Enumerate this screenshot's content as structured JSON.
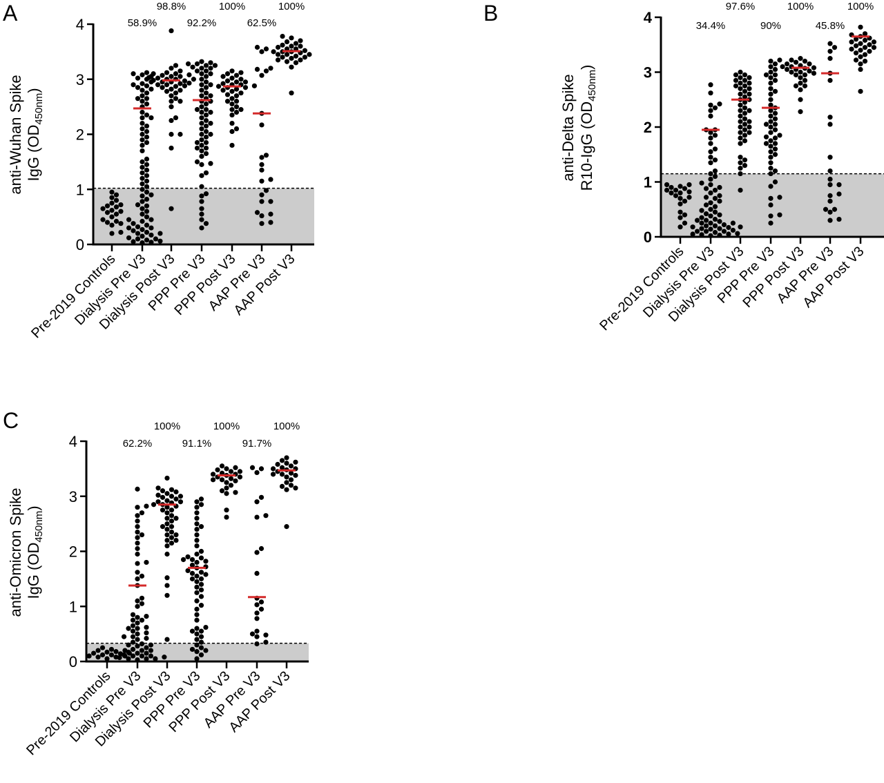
{
  "colors": {
    "dot": "#000000",
    "median": "#d42a2a",
    "below_threshold_fill": "#cccccc"
  },
  "chart_data": [
    {
      "type": "scatter",
      "subtype": "dot-plot",
      "panel_label": "A",
      "ylabel": {
        "line1": "anti-Wuhan Spike",
        "line2": "IgG (OD",
        "subscript": "450nm",
        "suffix": ")"
      },
      "ylim": [
        0,
        4
      ],
      "yticks": [
        "0",
        "1",
        "2",
        "3",
        "4"
      ],
      "grid": false,
      "threshold": 1.02,
      "categories": [
        "Pre-2019 Controls",
        "Dialysis Pre V3",
        "Dialysis Post V3",
        "PPP Pre V3",
        "PPP Post V3",
        "AAP Pre V3",
        "AAP Post V3"
      ],
      "percent_labels": [
        "",
        "58.9%",
        "98.8%",
        "92.2%",
        "100%",
        "62.5%",
        "100%"
      ],
      "medians": [
        null,
        2.47,
        2.98,
        2.62,
        2.87,
        2.38,
        3.51
      ],
      "values": [
        [
          0.2,
          0.22,
          0.35,
          0.38,
          0.4,
          0.42,
          0.45,
          0.5,
          0.55,
          0.58,
          0.6,
          0.62,
          0.65,
          0.68,
          0.7,
          0.72,
          0.75,
          0.8,
          0.85,
          0.9,
          0.95
        ],
        [
          0.03,
          0.04,
          0.05,
          0.06,
          0.08,
          0.1,
          0.12,
          0.15,
          0.17,
          0.2,
          0.22,
          0.25,
          0.27,
          0.3,
          0.32,
          0.35,
          0.38,
          0.42,
          0.45,
          0.5,
          0.55,
          0.6,
          0.65,
          0.7,
          0.72,
          0.78,
          0.82,
          0.88,
          0.9,
          0.95,
          1.0,
          1.05,
          1.1,
          1.15,
          1.2,
          1.25,
          1.3,
          1.35,
          1.4,
          1.45,
          1.5,
          1.55,
          1.7,
          1.8,
          1.85,
          1.95,
          2.0,
          2.05,
          2.1,
          2.15,
          2.2,
          2.3,
          2.35,
          2.4,
          2.5,
          2.55,
          2.6,
          2.65,
          2.7,
          2.75,
          2.8,
          2.85,
          2.9,
          2.92,
          2.95,
          3.0,
          3.02,
          3.05,
          3.08,
          3.1,
          3.12,
          2.82,
          2.88,
          2.65,
          2.3,
          1.9,
          0.45,
          0.3,
          0.2,
          0.1
        ],
        [
          0.65,
          1.75,
          2.0,
          2.0,
          2.25,
          2.3,
          2.5,
          2.6,
          2.6,
          2.65,
          2.7,
          2.75,
          2.78,
          2.8,
          2.82,
          2.85,
          2.87,
          2.9,
          2.9,
          2.92,
          2.95,
          2.95,
          2.97,
          2.98,
          3.0,
          3.0,
          3.02,
          3.03,
          3.05,
          3.05,
          3.07,
          3.08,
          3.1,
          3.1,
          3.12,
          3.15,
          3.2,
          3.25,
          3.88,
          2.93,
          3.0,
          2.88
        ],
        [
          0.3,
          0.38,
          0.45,
          0.55,
          0.65,
          0.78,
          0.88,
          0.92,
          1.05,
          1.25,
          1.3,
          1.45,
          1.47,
          1.5,
          1.6,
          1.65,
          1.7,
          1.75,
          1.8,
          1.85,
          1.9,
          1.95,
          2.0,
          2.05,
          2.1,
          2.15,
          2.2,
          2.25,
          2.3,
          2.35,
          2.4,
          2.45,
          2.5,
          2.55,
          2.6,
          2.65,
          2.7,
          2.75,
          2.8,
          2.85,
          2.9,
          2.95,
          3.0,
          3.05,
          3.1,
          3.15,
          3.2,
          3.22,
          3.25,
          3.28,
          3.3,
          3.32,
          3.2,
          3.25,
          3.28,
          2.9,
          2.6,
          2.4,
          2.2,
          1.85,
          1.75,
          2.0,
          2.45,
          2.7,
          3.1,
          3.15
        ],
        [
          1.8,
          2.05,
          2.1,
          2.2,
          2.35,
          2.4,
          2.45,
          2.5,
          2.55,
          2.6,
          2.65,
          2.7,
          2.72,
          2.75,
          2.78,
          2.8,
          2.82,
          2.85,
          2.87,
          2.88,
          2.9,
          2.92,
          2.95,
          2.97,
          3.0,
          3.02,
          3.05,
          3.07,
          3.1,
          3.12,
          3.15,
          2.85,
          2.9,
          2.95,
          2.45,
          2.6
        ],
        [
          0.38,
          0.4,
          0.52,
          0.55,
          0.58,
          0.78,
          0.78,
          0.9,
          0.98,
          1.15,
          1.18,
          1.35,
          1.45,
          1.58,
          1.62,
          2.17,
          2.38,
          3.07,
          3.15,
          3.18,
          3.2,
          3.5,
          3.55,
          3.58
        ],
        [
          2.75,
          3.22,
          3.3,
          3.32,
          3.35,
          3.38,
          3.4,
          3.42,
          3.45,
          3.45,
          3.48,
          3.5,
          3.5,
          3.52,
          3.55,
          3.55,
          3.58,
          3.6,
          3.62,
          3.65,
          3.68,
          3.7,
          3.75,
          3.78,
          3.4,
          3.5,
          3.6,
          3.35,
          3.45
        ]
      ]
    },
    {
      "type": "scatter",
      "subtype": "dot-plot",
      "panel_label": "B",
      "ylabel": {
        "line1": "anti-Delta Spike",
        "line2": "R10-IgG (OD",
        "subscript": "450nm",
        "suffix": ")"
      },
      "ylim": [
        0,
        4
      ],
      "yticks": [
        "0",
        "1",
        "2",
        "3",
        "4"
      ],
      "grid": false,
      "threshold": 1.15,
      "categories": [
        "Pre-2019 Controls",
        "Dialysis Pre V3",
        "Dialysis Post V3",
        "PPP Pre V3",
        "PPP Post V3",
        "AAP Pre V3",
        "AAP Post V3"
      ],
      "percent_labels": [
        "",
        "34.4%",
        "97.6%",
        "90%",
        "100%",
        "45.8%",
        "100%"
      ],
      "medians": [
        null,
        1.95,
        2.5,
        2.35,
        3.08,
        2.98,
        3.65
      ],
      "values": [
        [
          0.18,
          0.25,
          0.35,
          0.4,
          0.45,
          0.6,
          0.65,
          0.7,
          0.72,
          0.75,
          0.8,
          0.82,
          0.85,
          0.88,
          0.9,
          0.92,
          0.95,
          0.95,
          0.85,
          0.8
        ],
        [
          0.02,
          0.03,
          0.04,
          0.05,
          0.06,
          0.08,
          0.1,
          0.1,
          0.12,
          0.14,
          0.15,
          0.17,
          0.18,
          0.2,
          0.2,
          0.22,
          0.25,
          0.25,
          0.28,
          0.3,
          0.32,
          0.35,
          0.38,
          0.4,
          0.42,
          0.45,
          0.48,
          0.5,
          0.55,
          0.58,
          0.62,
          0.65,
          0.7,
          0.72,
          0.75,
          0.8,
          0.85,
          0.88,
          0.9,
          0.95,
          0.98,
          1.05,
          1.1,
          1.15,
          1.2,
          1.35,
          1.4,
          1.45,
          1.55,
          1.6,
          1.7,
          1.8,
          1.85,
          1.9,
          1.95,
          1.95,
          2.2,
          2.3,
          2.35,
          2.4,
          2.42,
          2.62,
          2.77,
          0.15,
          0.05,
          0.1,
          0.25,
          0.3
        ],
        [
          0.18,
          0.85,
          1.15,
          1.25,
          1.3,
          1.35,
          1.4,
          1.45,
          1.7,
          1.75,
          1.8,
          1.85,
          1.9,
          1.95,
          2.0,
          2.05,
          2.1,
          2.15,
          2.2,
          2.25,
          2.3,
          2.35,
          2.4,
          2.45,
          2.5,
          2.55,
          2.6,
          2.65,
          2.7,
          2.75,
          2.8,
          2.85,
          2.9,
          2.95,
          3.0,
          2.9,
          2.8,
          2.7,
          2.6,
          2.5,
          2.3,
          2.1,
          1.9,
          2.0,
          2.85,
          2.95,
          2.75
        ],
        [
          0.25,
          0.38,
          0.4,
          0.58,
          0.7,
          0.72,
          0.92,
          1.0,
          1.15,
          1.2,
          1.25,
          1.35,
          1.45,
          1.5,
          1.55,
          1.6,
          1.7,
          1.75,
          1.8,
          1.82,
          1.85,
          1.9,
          1.95,
          2.0,
          2.05,
          2.1,
          2.15,
          2.2,
          2.25,
          2.3,
          2.35,
          2.4,
          2.5,
          2.6,
          2.7,
          2.8,
          2.9,
          2.95,
          3.0,
          3.05,
          3.1,
          3.15,
          3.2,
          3.22,
          2.85,
          2.65,
          1.7,
          1.65,
          2.05,
          2.95
        ],
        [
          2.28,
          2.5,
          2.68,
          2.75,
          2.8,
          2.85,
          2.9,
          2.95,
          2.98,
          3.0,
          3.02,
          3.05,
          3.07,
          3.08,
          3.1,
          3.12,
          3.15,
          3.18,
          3.2,
          3.22,
          3.25,
          3.05,
          3.1,
          3.0,
          2.95,
          3.15,
          2.75
        ],
        [
          0.3,
          0.32,
          0.45,
          0.5,
          0.5,
          0.65,
          0.75,
          0.78,
          0.95,
          0.95,
          1.05,
          1.2,
          1.45,
          2.05,
          2.18,
          2.85,
          2.98,
          3.25,
          3.38,
          3.45,
          3.52
        ],
        [
          2.65,
          3.05,
          3.15,
          3.2,
          3.22,
          3.28,
          3.32,
          3.38,
          3.4,
          3.42,
          3.45,
          3.48,
          3.5,
          3.52,
          3.55,
          3.58,
          3.6,
          3.62,
          3.65,
          3.68,
          3.7,
          3.82,
          3.45,
          3.55,
          3.35
        ]
      ]
    },
    {
      "type": "scatter",
      "subtype": "dot-plot",
      "panel_label": "C",
      "ylabel": {
        "line1": "anti-Omicron Spike",
        "line2": "IgG (OD",
        "subscript": "450nm",
        "suffix": ")"
      },
      "ylim": [
        0,
        4
      ],
      "yticks": [
        "0",
        "1",
        "2",
        "3",
        "4"
      ],
      "grid": false,
      "threshold": 0.33,
      "categories": [
        "Pre-2019 Controls",
        "Dialysis Pre V3",
        "Dialysis Post V3",
        "PPP Pre V3",
        "PPP Post V3",
        "AAP Pre V3",
        "AAP Post V3"
      ],
      "percent_labels": [
        "",
        "62.2%",
        "100%",
        "91.1%",
        "100%",
        "91.7%",
        "100%"
      ],
      "medians": [
        null,
        1.38,
        2.85,
        1.7,
        3.38,
        1.17,
        3.47
      ],
      "values": [
        [
          0.05,
          0.08,
          0.08,
          0.1,
          0.1,
          0.12,
          0.12,
          0.14,
          0.15,
          0.15,
          0.17,
          0.18,
          0.2,
          0.2,
          0.22,
          0.25
        ],
        [
          0.03,
          0.05,
          0.05,
          0.07,
          0.08,
          0.1,
          0.1,
          0.12,
          0.15,
          0.17,
          0.2,
          0.22,
          0.25,
          0.28,
          0.3,
          0.32,
          0.35,
          0.4,
          0.42,
          0.45,
          0.5,
          0.52,
          0.55,
          0.6,
          0.62,
          0.65,
          0.7,
          0.75,
          0.8,
          0.82,
          0.85,
          1.0,
          1.05,
          1.1,
          1.15,
          1.38,
          1.5,
          1.55,
          1.62,
          1.78,
          1.8,
          1.95,
          2.05,
          2.15,
          2.25,
          2.3,
          2.35,
          2.45,
          2.55,
          2.65,
          2.7,
          2.8,
          2.82,
          3.13,
          0.15,
          0.1,
          0.3,
          0.45,
          0.6,
          0.75,
          0.2,
          0.05
        ],
        [
          0.4,
          1.2,
          1.38,
          1.52,
          1.95,
          2.1,
          2.15,
          2.2,
          2.25,
          2.3,
          2.35,
          2.4,
          2.45,
          2.5,
          2.55,
          2.6,
          2.65,
          2.7,
          2.75,
          2.8,
          2.82,
          2.85,
          2.88,
          2.9,
          2.92,
          2.95,
          2.98,
          3.0,
          3.02,
          3.05,
          3.08,
          3.1,
          3.12,
          3.15,
          3.33,
          2.85,
          2.75,
          2.6,
          2.45,
          2.3,
          2.9,
          3.0,
          2.2
        ],
        [
          0.05,
          0.12,
          0.18,
          0.22,
          0.25,
          0.3,
          0.35,
          0.4,
          0.45,
          0.5,
          0.55,
          0.6,
          0.62,
          0.75,
          0.85,
          0.95,
          1.02,
          1.1,
          1.18,
          1.25,
          1.3,
          1.35,
          1.4,
          1.45,
          1.5,
          1.55,
          1.58,
          1.62,
          1.65,
          1.7,
          1.72,
          1.75,
          1.8,
          1.82,
          1.85,
          1.88,
          1.9,
          1.95,
          2.0,
          2.1,
          2.2,
          2.3,
          2.4,
          2.5,
          2.6,
          2.7,
          2.8,
          2.9,
          2.95,
          1.5,
          1.6,
          1.85,
          2.45,
          2.85,
          0.55,
          0.2
        ],
        [
          2.62,
          2.75,
          3.05,
          3.07,
          3.1,
          3.15,
          3.2,
          3.25,
          3.28,
          3.3,
          3.32,
          3.35,
          3.38,
          3.4,
          3.42,
          3.45,
          3.48,
          3.5,
          3.52,
          3.55,
          3.35,
          3.4,
          3.3,
          3.45
        ],
        [
          0.32,
          0.35,
          0.45,
          0.48,
          0.5,
          0.55,
          0.78,
          0.88,
          0.95,
          1.03,
          1.08,
          1.15,
          1.6,
          1.98,
          2.05,
          2.62,
          2.65,
          2.9,
          2.98,
          3.43,
          3.5,
          3.52
        ],
        [
          2.45,
          3.12,
          3.15,
          3.18,
          3.2,
          3.25,
          3.3,
          3.35,
          3.38,
          3.4,
          3.42,
          3.45,
          3.48,
          3.5,
          3.52,
          3.55,
          3.58,
          3.6,
          3.62,
          3.65,
          3.7,
          3.4,
          3.5
        ]
      ]
    }
  ]
}
